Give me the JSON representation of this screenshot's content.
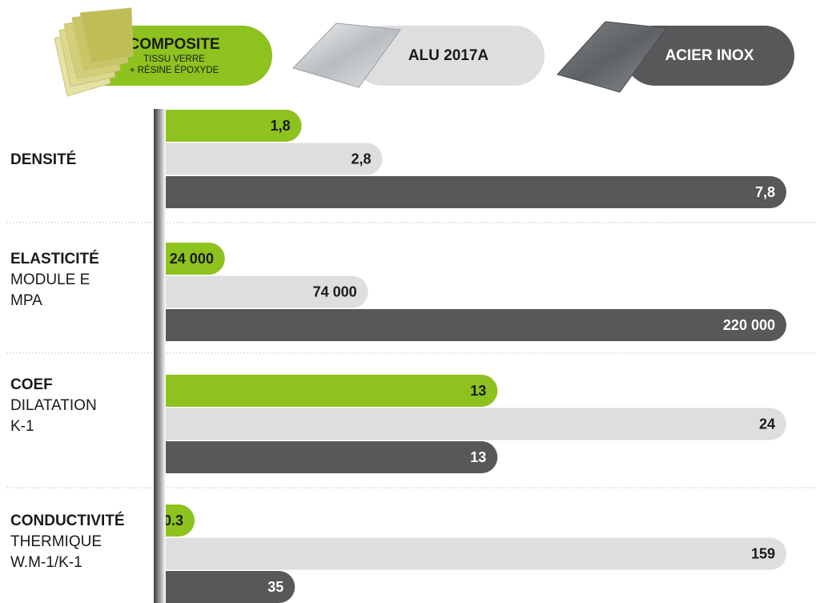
{
  "legend": [
    {
      "title": "COMPOSITE",
      "sub1": "TISSU VERRE",
      "sub2": "+ RÉSINE ÉPOXYDE"
    },
    {
      "title": "ALU 2017A"
    },
    {
      "title": "ACIER INOX"
    }
  ],
  "colors": {
    "composite": "#8dc21f",
    "alu": "#dededf",
    "acier": "#58585a"
  },
  "rows": [
    {
      "label_bold": "DENSITÉ",
      "label_lines": []
    },
    {
      "label_bold": "ELASTICITÉ",
      "label_lines": [
        "MODULE E",
        "MPA"
      ]
    },
    {
      "label_bold": "COEF",
      "label_lines": [
        "DILATATION",
        "K-1"
      ]
    },
    {
      "label_bold": "CONDUCTIVITÉ",
      "label_lines": [
        "THERMIQUE",
        "W.M-1/K-1"
      ]
    }
  ],
  "chart_data": {
    "type": "bar",
    "orientation": "horizontal",
    "categories": [
      "DENSITÉ",
      "ELASTICITÉ MODULE E MPA",
      "COEF DILATATION K-1",
      "CONDUCTIVITÉ THERMIQUE W.M-1/K-1"
    ],
    "series": [
      {
        "name": "COMPOSITE",
        "values": [
          1.8,
          24000,
          13,
          0.3
        ],
        "labels": [
          "1,8",
          "24 000",
          "13",
          "0.3"
        ]
      },
      {
        "name": "ALU 2017A",
        "values": [
          2.8,
          74000,
          24,
          159
        ],
        "labels": [
          "2,8",
          "74 000",
          "24",
          "159"
        ]
      },
      {
        "name": "ACIER INOX",
        "values": [
          7.8,
          220000,
          13,
          35
        ],
        "labels": [
          "7,8",
          "220 000",
          "13",
          "35"
        ]
      }
    ]
  }
}
